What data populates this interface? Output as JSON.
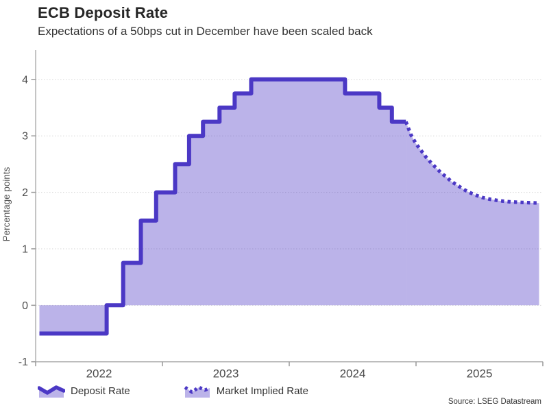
{
  "source": "Source: LSEG Datastream",
  "colors": {
    "line": "#4B38C5",
    "fill_rgba": "rgba(75,56,197,0.38)",
    "grid": "#d6d6d6",
    "axis": "#b0b0b0",
    "tick": "#999999",
    "tick_label": "#4d4d4d",
    "axis_title": "#555555",
    "title": "#262626",
    "text": "#333333"
  },
  "legend": [
    {
      "label": "Deposit Rate",
      "style": "solid"
    },
    {
      "label": "Market Implied Rate",
      "style": "dotted"
    }
  ],
  "chart_data": {
    "type": "area",
    "title": "ECB Deposit Rate",
    "subtitle": "Expectations of a 50bps cut in December have been scaled back",
    "xlabel": "",
    "ylabel": "Percentage points",
    "ylim": [
      -1,
      4.52
    ],
    "xlim": [
      2022,
      2026
    ],
    "yticks": [
      -1,
      0,
      1,
      2,
      3,
      4
    ],
    "xticks": [
      2022,
      2023,
      2024,
      2025,
      2026
    ],
    "xtick_labels": [
      {
        "label": "2022",
        "x": 2022.5
      },
      {
        "label": "2023",
        "x": 2023.5
      },
      {
        "label": "2024",
        "x": 2024.5
      },
      {
        "label": "2025",
        "x": 2025.5
      }
    ],
    "grid": "horizontal-dotted",
    "baseline": 0,
    "legend_position": "bottom-left",
    "series": [
      {
        "name": "Deposit Rate",
        "style": "solid",
        "step": true,
        "points": [
          [
            2022.03,
            -0.5
          ],
          [
            2022.56,
            0.0
          ],
          [
            2022.69,
            0.75
          ],
          [
            2022.83,
            1.5
          ],
          [
            2022.95,
            2.0
          ],
          [
            2023.1,
            2.5
          ],
          [
            2023.21,
            3.0
          ],
          [
            2023.32,
            3.25
          ],
          [
            2023.45,
            3.5
          ],
          [
            2023.57,
            3.75
          ],
          [
            2023.7,
            4.0
          ],
          [
            2024.44,
            3.75
          ],
          [
            2024.71,
            3.5
          ],
          [
            2024.81,
            3.25
          ],
          [
            2024.92,
            3.25
          ]
        ]
      },
      {
        "name": "Market Implied Rate",
        "style": "dotted",
        "step": false,
        "points": [
          [
            2024.92,
            3.25
          ],
          [
            2024.96,
            3.02
          ],
          [
            2025.0,
            2.86
          ],
          [
            2025.04,
            2.74
          ],
          [
            2025.08,
            2.62
          ],
          [
            2025.12,
            2.52
          ],
          [
            2025.16,
            2.43
          ],
          [
            2025.2,
            2.34
          ],
          [
            2025.24,
            2.27
          ],
          [
            2025.28,
            2.19
          ],
          [
            2025.33,
            2.12
          ],
          [
            2025.37,
            2.06
          ],
          [
            2025.41,
            2.01
          ],
          [
            2025.46,
            1.96
          ],
          [
            2025.52,
            1.91
          ],
          [
            2025.58,
            1.88
          ],
          [
            2025.66,
            1.85
          ],
          [
            2025.75,
            1.83
          ],
          [
            2025.85,
            1.82
          ],
          [
            2025.97,
            1.81
          ]
        ]
      }
    ]
  }
}
